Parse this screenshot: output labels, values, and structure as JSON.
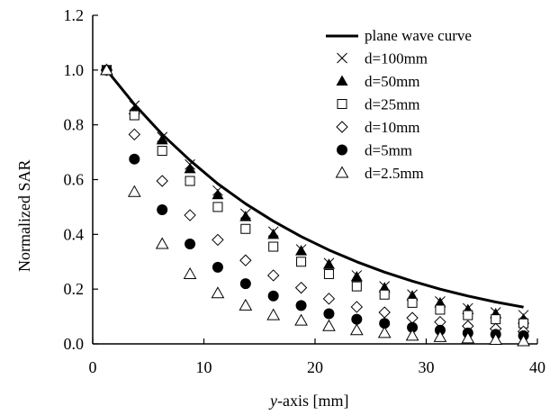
{
  "chart_data": {
    "type": "scatter",
    "title": "",
    "xlabel_italic": "y",
    "xlabel_rest": "-axis [mm]",
    "ylabel": "Normalized SAR",
    "xlim": [
      0,
      40
    ],
    "ylim": [
      0,
      1.2
    ],
    "xticks": [
      "0",
      "10",
      "20",
      "30",
      "40"
    ],
    "yticks": [
      "0.0",
      "0.2",
      "0.4",
      "0.6",
      "0.8",
      "1.0",
      "1.2"
    ],
    "grid": false,
    "legend_position": "top-right",
    "x": [
      1.25,
      3.75,
      6.25,
      8.75,
      11.25,
      13.75,
      16.25,
      18.75,
      21.25,
      23.75,
      26.25,
      28.75,
      31.25,
      33.75,
      36.25,
      38.75
    ],
    "line": {
      "name": "plane wave curve",
      "x": [
        1.25,
        3.75,
        6.25,
        8.75,
        11.25,
        13.75,
        16.25,
        18.75,
        21.25,
        23.75,
        26.25,
        28.75,
        31.25,
        33.75,
        36.25,
        38.75
      ],
      "values": [
        1.0,
        0.875,
        0.765,
        0.67,
        0.585,
        0.512,
        0.448,
        0.392,
        0.343,
        0.3,
        0.262,
        0.229,
        0.2,
        0.175,
        0.153,
        0.134
      ]
    },
    "series": [
      {
        "name": "d=100mm",
        "marker": "x",
        "values": [
          1.0,
          0.87,
          0.755,
          0.655,
          0.56,
          0.475,
          0.41,
          0.345,
          0.295,
          0.25,
          0.21,
          0.18,
          0.155,
          0.13,
          0.115,
          0.105
        ]
      },
      {
        "name": "d=50mm",
        "marker": "filled-triangle",
        "values": [
          1.0,
          0.855,
          0.745,
          0.64,
          0.545,
          0.465,
          0.4,
          0.34,
          0.29,
          0.245,
          0.205,
          0.175,
          0.15,
          0.125,
          0.11,
          0.09
        ]
      },
      {
        "name": "d=25mm",
        "marker": "open-square",
        "values": [
          1.0,
          0.835,
          0.705,
          0.595,
          0.5,
          0.42,
          0.355,
          0.3,
          0.255,
          0.21,
          0.18,
          0.15,
          0.125,
          0.105,
          0.09,
          0.075
        ]
      },
      {
        "name": "d=10mm",
        "marker": "open-diamond",
        "values": [
          1.0,
          0.765,
          0.595,
          0.47,
          0.38,
          0.305,
          0.25,
          0.205,
          0.165,
          0.135,
          0.115,
          0.095,
          0.08,
          0.065,
          0.055,
          0.045
        ]
      },
      {
        "name": "d=5mm",
        "marker": "filled-circle",
        "values": [
          1.0,
          0.675,
          0.49,
          0.365,
          0.28,
          0.22,
          0.175,
          0.14,
          0.11,
          0.09,
          0.075,
          0.06,
          0.05,
          0.04,
          0.035,
          0.03
        ]
      },
      {
        "name": "d=2.5mm",
        "marker": "open-triangle",
        "values": [
          1.0,
          0.555,
          0.365,
          0.255,
          0.185,
          0.14,
          0.105,
          0.085,
          0.065,
          0.05,
          0.04,
          0.03,
          0.025,
          0.02,
          0.015,
          0.01
        ]
      }
    ]
  }
}
